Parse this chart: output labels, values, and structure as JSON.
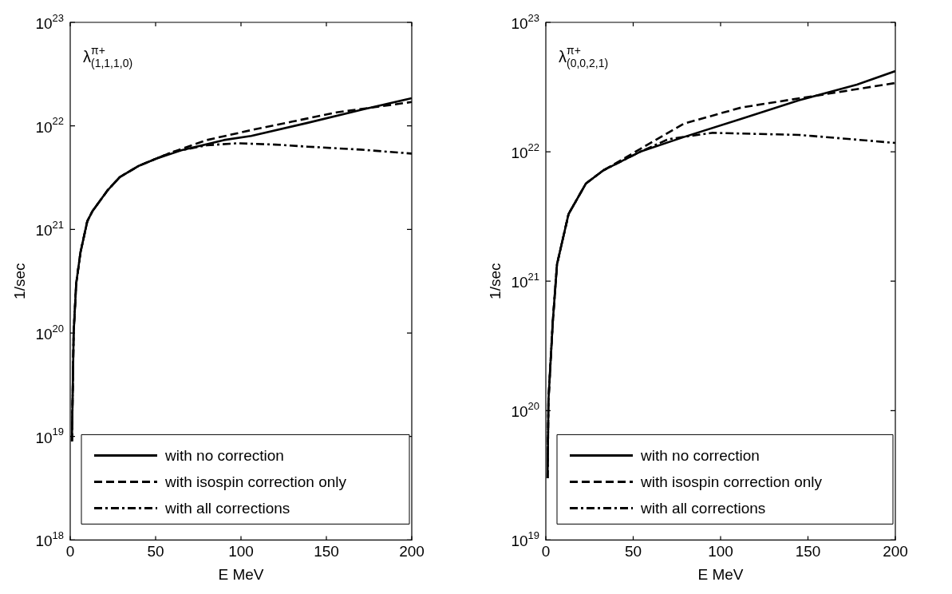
{
  "chart_data": [
    {
      "type": "line",
      "annotations": [
        "λ$^{π+}$$_{(1,1,1,0)}$"
      ],
      "xlabel": "E MeV",
      "ylabel": "1/sec",
      "log": "y",
      "legend": "bottom",
      "xlim": [
        0,
        200
      ],
      "xticks": [
        0,
        50,
        100,
        150,
        200
      ],
      "ylim": [
        1e+18,
        1e+23
      ],
      "yticks": [
        {
          "value": 1e+18,
          "label": "10$^{18}$"
        },
        {
          "value": 1e+19,
          "label": "10$^{19}$"
        },
        {
          "value": 1e+20,
          "label": "10$^{20}$"
        },
        {
          "value": 1e+21,
          "label": "10$^{21}$"
        },
        {
          "value": 1e+22,
          "label": "10$^{22}$"
        },
        {
          "value": 1e+23,
          "label": "10$^{23}$"
        }
      ],
      "series": [
        {
          "name": "with no correction",
          "color": "#000000",
          "line_style": "solid",
          "x": [
            1,
            2,
            3.5,
            6,
            10,
            13,
            22,
            29,
            40,
            50,
            65,
            90,
            106,
            139,
            172,
            200
          ],
          "values": [
            9e+18,
            1e+20,
            3e+20,
            6e+20,
            1.2e+21,
            1.5e+21,
            2.4e+21,
            3.2e+21,
            4.1e+21,
            4.8e+21,
            5.8e+21,
            7.3e+21,
            8e+21,
            1.07e+22,
            1.45e+22,
            1.85e+22
          ]
        },
        {
          "name": "with isospin correction only",
          "color": "#000000",
          "line_style": "dashed",
          "x": [
            1,
            2,
            3.5,
            6,
            10,
            13,
            22,
            29,
            40,
            50,
            60,
            80,
            106,
            130,
            156,
            200
          ],
          "values": [
            9e+18,
            1e+20,
            3e+20,
            6e+20,
            1.2e+21,
            1.5e+21,
            2.4e+21,
            3.2e+21,
            4.1e+21,
            4.8e+21,
            5.6e+21,
            7.3e+21,
            9.1e+21,
            1.1e+22,
            1.35e+22,
            1.7e+22
          ]
        },
        {
          "name": "with all corrections",
          "color": "#000000",
          "line_style": "dashdot",
          "x": [
            1,
            2,
            3.5,
            6,
            10,
            13,
            22,
            29,
            40,
            50,
            60,
            80,
            98,
            120,
            139,
            170,
            200
          ],
          "values": [
            9e+18,
            1e+20,
            3e+20,
            6e+20,
            1.2e+21,
            1.5e+21,
            2.4e+21,
            3.2e+21,
            4.1e+21,
            4.8e+21,
            5.6e+21,
            6.5e+21,
            6.8e+21,
            6.6e+21,
            6.3e+21,
            5.9e+21,
            5.4e+21
          ]
        }
      ]
    },
    {
      "type": "line",
      "annotations": [
        "λ$^{π+}$$_{(0,0,2,1)}$"
      ],
      "xlabel": "E MeV",
      "ylabel": "1/sec",
      "log": "y",
      "legend": "bottom",
      "xlim": [
        0,
        200
      ],
      "xticks": [
        0,
        50,
        100,
        150,
        200
      ],
      "ylim": [
        1e+19,
        1e+23
      ],
      "yticks": [
        {
          "value": 1e+19,
          "label": "10$^{19}$"
        },
        {
          "value": 1e+20,
          "label": "10$^{20}$"
        },
        {
          "value": 1e+21,
          "label": "10$^{21}$"
        },
        {
          "value": 1e+22,
          "label": "10$^{22}$"
        },
        {
          "value": 1e+23,
          "label": "10$^{23}$"
        }
      ],
      "series": [
        {
          "name": "with no correction",
          "color": "#000000",
          "line_style": "solid",
          "x": [
            1,
            1.5,
            4,
            6.4,
            13,
            23,
            33,
            54,
            79,
            112,
            145,
            178,
            200
          ],
          "values": [
            3e+19,
            1.2e+20,
            4.9e+20,
            1.35e+21,
            3.3e+21,
            5.7e+21,
            7.2e+21,
            1e+22,
            1.3e+22,
            1.8e+22,
            2.5e+22,
            3.3e+22,
            4.2e+22
          ]
        },
        {
          "name": "with isospin correction only",
          "color": "#000000",
          "line_style": "dashed",
          "x": [
            1,
            1.5,
            4,
            6.4,
            13,
            23,
            33,
            54,
            79,
            112,
            161,
            200
          ],
          "values": [
            3e+19,
            1.2e+20,
            4.9e+20,
            1.35e+21,
            3.3e+21,
            5.7e+21,
            7.2e+21,
            1.05e+22,
            1.65e+22,
            2.2e+22,
            2.8e+22,
            3.4e+22
          ]
        },
        {
          "name": "with all corrections",
          "color": "#000000",
          "line_style": "dashdot",
          "x": [
            1,
            1.5,
            4,
            6.4,
            13,
            23,
            33,
            54,
            70,
            95,
            145,
            175,
            200
          ],
          "values": [
            3e+19,
            1.2e+20,
            4.9e+20,
            1.35e+21,
            3.3e+21,
            5.7e+21,
            7.2e+21,
            1e+22,
            1.25e+22,
            1.4e+22,
            1.35e+22,
            1.25e+22,
            1.17e+22
          ]
        }
      ]
    }
  ]
}
